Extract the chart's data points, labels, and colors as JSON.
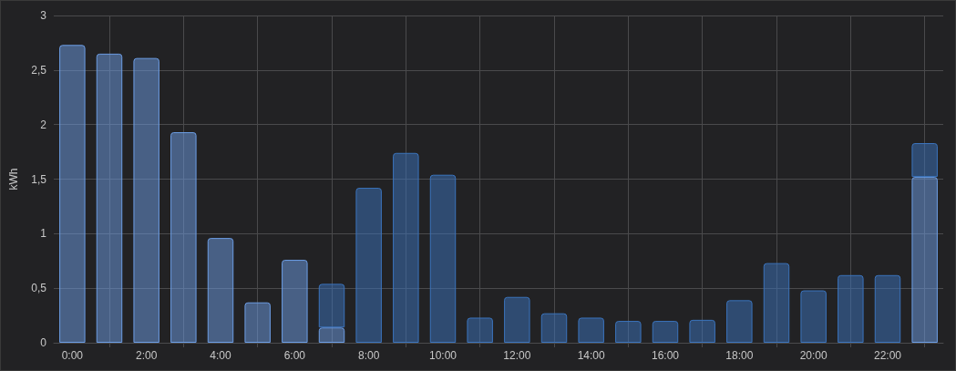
{
  "chart_data": {
    "type": "bar",
    "stacked": true,
    "ylabel": "kWh",
    "categories": [
      "0:00",
      null,
      "2:00",
      null,
      "4:00",
      null,
      "6:00",
      null,
      "8:00",
      null,
      "10:00",
      null,
      "12:00",
      null,
      "14:00",
      null,
      "16:00",
      null,
      "18:00",
      null,
      "20:00",
      null,
      "22:00",
      null
    ],
    "series": [
      {
        "color": "#6d9ee6",
        "values": [
          2.73,
          2.65,
          2.61,
          1.93,
          0.96,
          0.37,
          0.76,
          0.14,
          null,
          null,
          null,
          null,
          null,
          null,
          null,
          null,
          null,
          null,
          null,
          null,
          null,
          null,
          null,
          1.52
        ]
      },
      {
        "color": "#3b74bd",
        "values": [
          null,
          null,
          null,
          null,
          null,
          null,
          null,
          0.4,
          1.42,
          1.74,
          1.54,
          0.23,
          0.42,
          0.27,
          0.23,
          0.2,
          0.2,
          0.21,
          0.39,
          0.73,
          0.48,
          0.62,
          0.62,
          0.31
        ]
      }
    ],
    "ylim": [
      0,
      3
    ],
    "yticks": [
      0,
      {
        "value": 0.5,
        "label": "0,5"
      },
      1,
      {
        "value": 1.5,
        "label": "1,5"
      },
      2,
      {
        "value": 2.5,
        "label": "2,5"
      },
      3
    ],
    "grid": true
  }
}
